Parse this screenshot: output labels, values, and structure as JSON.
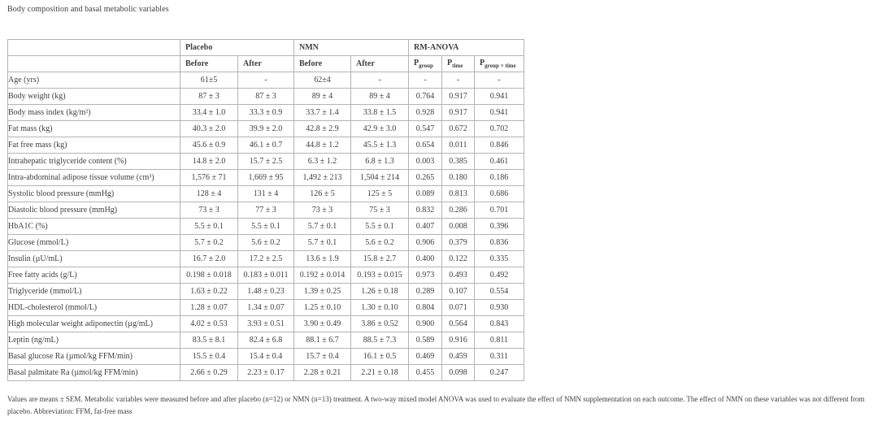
{
  "title": "Body composition and basal metabolic variables",
  "table": {
    "groups": [
      {
        "label": "Placebo"
      },
      {
        "label": "NMN"
      },
      {
        "label": "RM-ANOVA"
      }
    ],
    "sub_headers": [
      "Before",
      "After",
      "Before",
      "After"
    ],
    "anova_headers": [
      {
        "base": "P",
        "sub": "group"
      },
      {
        "base": "P",
        "sub": "time"
      },
      {
        "base": "P",
        "sub": "group × time"
      }
    ],
    "rows": [
      {
        "label": "Age (yrs)",
        "cells": [
          "61±5",
          "-",
          "62±4",
          "-",
          "-",
          "-",
          "-"
        ]
      },
      {
        "label": "Body weight (kg)",
        "cells": [
          "87 ± 3",
          "87 ± 3",
          "89 ± 4",
          "89 ± 4",
          "0.764",
          "0.917",
          "0.941"
        ]
      },
      {
        "label": "Body mass index (kg/m²)",
        "cells": [
          "33.4 ± 1.0",
          "33.3 ± 0.9",
          "33.7 ± 1.4",
          "33.8 ± 1.5",
          "0.928",
          "0.917",
          "0.941"
        ]
      },
      {
        "label": "Fat mass (kg)",
        "cells": [
          "40.3 ± 2.0",
          "39.9 ± 2.0",
          "42.8 ± 2.9",
          "42.9 ± 3.0",
          "0.547",
          "0.672",
          "0.702"
        ]
      },
      {
        "label": "Fat free mass (kg)",
        "cells": [
          "45.6 ± 0.9",
          "46.1 ± 0.7",
          "44.8 ± 1.2",
          "45.5 ± 1.3",
          "0.654",
          "0.011",
          "0.846"
        ]
      },
      {
        "label": "Intrahepatic triglyceride content (%)",
        "cells": [
          "14.8 ± 2.0",
          "15.7 ± 2.5",
          "6.3 ± 1.2",
          "6.8 ± 1.3",
          "0.003",
          "0.385",
          "0.461"
        ]
      },
      {
        "label": "Intra-abdominal adipose tissue volume (cm³)",
        "cells": [
          "1,576 ± 71",
          "1,669 ± 95",
          "1,492 ± 213",
          "1,504 ± 214",
          "0.265",
          "0.180",
          "0.186"
        ]
      },
      {
        "label": "Systolic blood pressure (mmHg)",
        "cells": [
          "128 ± 4",
          "131 ± 4",
          "126 ± 5",
          "125 ± 5",
          "0.089",
          "0.813",
          "0.686"
        ]
      },
      {
        "label": "Diastolic blood pressure (mmHg)",
        "cells": [
          "73 ± 3",
          "77 ± 3",
          "73 ± 3",
          "75 ± 3",
          "0.832",
          "0.286",
          "0.701"
        ]
      },
      {
        "label": "HbA1C (%)",
        "cells": [
          "5.5 ± 0.1",
          "5.5 ± 0.1",
          "5.7 ± 0.1",
          "5.5 ± 0.1",
          "0.407",
          "0.008",
          "0.396"
        ]
      },
      {
        "label": "Glucose (mmol/L)",
        "cells": [
          "5.7 ± 0.2",
          "5.6 ± 0.2",
          "5.7 ± 0.1",
          "5.6 ± 0.2",
          "0.906",
          "0.379",
          "0.836"
        ]
      },
      {
        "label": "Insulin (µU/mL)",
        "cells": [
          "16.7 ± 2.0",
          "17.2 ± 2.5",
          "13.6 ± 1.9",
          "15.8 ± 2.7",
          "0.400",
          "0.122",
          "0.335"
        ]
      },
      {
        "label": "Free fatty acids (g/L)",
        "cells": [
          "0.198 ± 0.018",
          "0.183 ± 0.011",
          "0.192 ± 0.014",
          "0.193 ± 0.015",
          "0.973",
          "0.493",
          "0.492"
        ]
      },
      {
        "label": "Triglyceride (mmol/L)",
        "cells": [
          "1.63 ± 0.22",
          "1.48 ± 0.23",
          "1.39 ± 0.25",
          "1.26 ± 0.18",
          "0.289",
          "0.107",
          "0.554"
        ]
      },
      {
        "label": "HDL-cholesterol (mmol/L)",
        "cells": [
          "1.28 ± 0.07",
          "1.34 ± 0.07",
          "1.25 ± 0.10",
          "1.30 ± 0.10",
          "0.804",
          "0.071",
          "0.930"
        ]
      },
      {
        "label": "High molecular weight adiponectin (µg/mL)",
        "cells": [
          "4.02 ± 0.53",
          "3.93 ± 0.51",
          "3.90 ± 0.49",
          "3.86 ± 0.52",
          "0.900",
          "0.564",
          "0.843"
        ]
      },
      {
        "label": "Leptin (ng/mL)",
        "cells": [
          "83.5 ± 8.1",
          "82.4 ± 6.8",
          "88.1 ± 6.7",
          "88.5 ± 7.3",
          "0.589",
          "0.916",
          "0.811"
        ]
      },
      {
        "label": "Basal glucose Ra (µmol/kg FFM/min)",
        "cells": [
          "15.5 ± 0.4",
          "15.4 ± 0.4",
          "15.7 ± 0.4",
          "16.1 ± 0.5",
          "0.469",
          "0.459",
          "0.311"
        ]
      },
      {
        "label": "Basal palmitate Ra (µmol/kg FFM/min)",
        "cells": [
          "2.66 ± 0.29",
          "2.23 ± 0.17",
          "2.28 ± 0.21",
          "2.21 ± 0.18",
          "0.455",
          "0.098",
          "0.247"
        ]
      }
    ]
  },
  "footnote": "Values are means ± SEM. Metabolic variables were measured before and after placebo (n=12) or NMN (n=13) treatment. A two-way mixed model ANOVA was used to evaluate the effect of NMN supplementation on each outcome. The effect of NMN on these variables was not different from placebo. Abbreviation: FFM, fat-free mass"
}
